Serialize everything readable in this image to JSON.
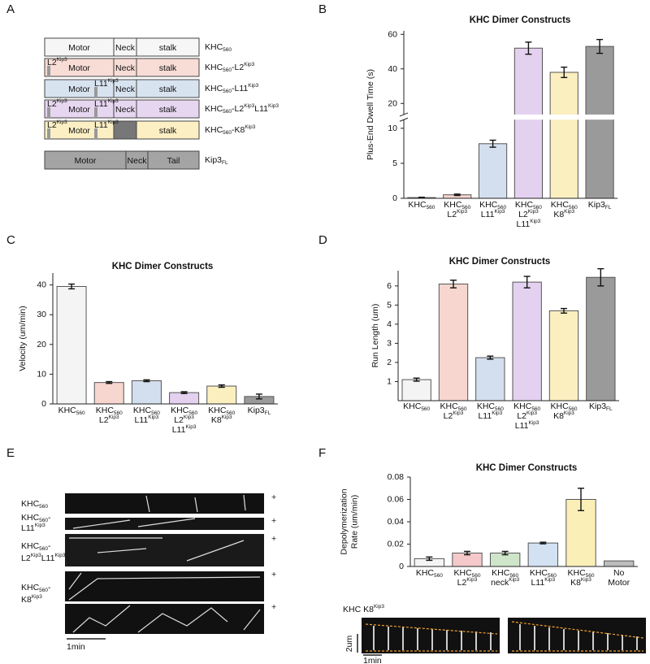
{
  "panel_labels": [
    "A",
    "B",
    "C",
    "D",
    "E",
    "F"
  ],
  "diagram": {
    "rows": [
      {
        "parts": [
          "Motor",
          "Neck",
          "stalk"
        ],
        "inserts": [],
        "name": "KHC560"
      },
      {
        "parts": [
          "Motor",
          "Neck",
          "stalk"
        ],
        "inserts": [
          "L2Kip3"
        ],
        "name": "KHC560-L2Kip3"
      },
      {
        "parts": [
          "Motor",
          "Neck",
          "stalk"
        ],
        "inserts": [
          "L11Kip3"
        ],
        "name": "KHC560-L11Kip3"
      },
      {
        "parts": [
          "Motor",
          "Neck",
          "stalk"
        ],
        "inserts": [
          "L2Kip3",
          "L11Kip3"
        ],
        "name": "KHC560-L2Kip3L11Kip3"
      },
      {
        "parts": [
          "Motor",
          "stalk"
        ],
        "inserts": [
          "L2Kip3",
          "L11Kip3"
        ],
        "name": "KHC560-K8Kip3"
      },
      {
        "parts": [
          "Motor",
          "Neck",
          "Tail"
        ],
        "inserts": [],
        "name": "Kip3FL"
      }
    ]
  },
  "chart_data": [
    {
      "type": "bar",
      "title": "KHC Dimer Constructs",
      "y_label": "Plus-End Dwell Time (s)",
      "categories": [
        [
          "KHC560"
        ],
        [
          "KHC560",
          "L2Kip3"
        ],
        [
          "KHC560",
          "L11Kip3"
        ],
        [
          "KHC560",
          "L2Kip3",
          "L11Kip3"
        ],
        [
          "KHC560",
          "K8Kip3"
        ],
        [
          "Kip3FL"
        ]
      ],
      "values": [
        0.1,
        0.5,
        7.8,
        52,
        38,
        53
      ],
      "errors": [
        0.05,
        0.1,
        0.5,
        3.5,
        3,
        4
      ],
      "colors": [
        "#f4f4f4",
        "#f7d6cf",
        "#d3dfee",
        "#e4d1ef",
        "#fbefc0",
        "#9a9a9a"
      ],
      "ylim": [
        0,
        62
      ],
      "ybreak": [
        11,
        14.5
      ],
      "yticks": [
        0,
        5,
        10,
        20,
        40,
        60
      ]
    },
    {
      "type": "bar",
      "title": "KHC Dimer Constructs",
      "y_label": "Velocity (um/min)",
      "categories": [
        [
          "KHC560"
        ],
        [
          "KHC560",
          "L2Kip3"
        ],
        [
          "KHC560",
          "L11Kip3"
        ],
        [
          "KHC560",
          "L2Kip3",
          "L11Kip3"
        ],
        [
          "KHC560",
          "K8Kip3"
        ],
        [
          "Kip3FL"
        ]
      ],
      "values": [
        39.5,
        7.2,
        7.8,
        3.8,
        6,
        2.5
      ],
      "errors": [
        0.8,
        0.3,
        0.3,
        0.3,
        0.4,
        0.8
      ],
      "colors": [
        "#f4f4f4",
        "#f7d6cf",
        "#d3dfee",
        "#e4d1ef",
        "#fbefc0",
        "#9a9a9a"
      ],
      "ylim": [
        0,
        44
      ],
      "yticks": [
        0,
        10,
        20,
        30,
        40
      ]
    },
    {
      "type": "bar",
      "title": "KHC Dimer Constructs",
      "y_label": "Run Length (um)",
      "categories": [
        [
          "KHC560"
        ],
        [
          "KHC560",
          "L2Kip3"
        ],
        [
          "KHC560",
          "L11Kip3"
        ],
        [
          "KHC560",
          "L2Kip3",
          "L11Kip3"
        ],
        [
          "KHC560",
          "K8Kip3"
        ],
        [
          "Kip3FL"
        ]
      ],
      "values": [
        1.1,
        6.1,
        2.25,
        6.2,
        4.7,
        6.45
      ],
      "errors": [
        0.08,
        0.2,
        0.08,
        0.3,
        0.12,
        0.45
      ],
      "colors": [
        "#f4f4f4",
        "#f7d6cf",
        "#d3dfee",
        "#e4d1ef",
        "#fbefc0",
        "#9a9a9a"
      ],
      "ylim": [
        0,
        6.8
      ],
      "yticks": [
        1,
        2,
        3,
        4,
        5,
        6
      ]
    },
    {
      "type": "bar",
      "title": "KHC Dimer Constructs",
      "y_label": [
        "Depolymerization",
        "Rate (um/min)"
      ],
      "categories": [
        [
          "KHC560"
        ],
        [
          "KHC560",
          "L2Kip3"
        ],
        [
          "KHC560",
          "neckKip3"
        ],
        [
          "KHC560",
          "L11Kip3"
        ],
        [
          "KHC560",
          "K8Kip3"
        ],
        [
          "No",
          "Motor"
        ]
      ],
      "values": [
        0.007,
        0.012,
        0.012,
        0.021,
        0.06,
        0.005
      ],
      "errors": [
        0.0015,
        0.0015,
        0.0015,
        0.0007,
        0.01,
        null
      ],
      "colors": [
        "#f4f4f4",
        "#f5c9c9",
        "#cfe5c9",
        "#d3e2f2",
        "#fbefb8",
        "#bdbdbd"
      ],
      "ylim": [
        0,
        0.08
      ],
      "yticks": [
        0,
        0.02,
        0.04,
        0.06,
        0.08
      ]
    }
  ],
  "kymographs": {
    "labels": [
      [
        "KHC560"
      ],
      [
        "KHC560-",
        "L11Kip3"
      ],
      [
        "KHC560-",
        "L2Kip3L11Kip3"
      ],
      [
        "KHC560-",
        "K8Kip3"
      ]
    ],
    "plus": "+",
    "scale": "1min"
  },
  "images": {
    "label": "KHC K8Kip3",
    "scale_y": "2um",
    "scale_x": "1min"
  }
}
